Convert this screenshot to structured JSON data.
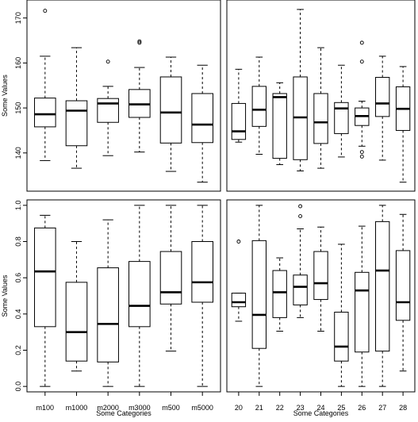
{
  "chart_data": [
    {
      "type": "boxplot",
      "panel": "top-left",
      "ylabel": "Some Values",
      "xlabel": "",
      "ylim": [
        131.5,
        174
      ],
      "yticks": [
        140,
        150,
        160,
        170
      ],
      "ytick_labels": [
        "140",
        "150",
        "160",
        "170"
      ],
      "categories": [
        "m100",
        "m1000",
        "m2000",
        "m3000",
        "m500",
        "m5000"
      ],
      "show_x_tick_labels": false,
      "boxes": [
        {
          "min": 138.3,
          "q1": 145.8,
          "median": 148.6,
          "q3": 152.2,
          "max": 161.5,
          "outliers": [
            171.6
          ]
        },
        {
          "min": 136.6,
          "q1": 141.6,
          "median": 149.4,
          "q3": 151.6,
          "max": 163.4,
          "outliers": []
        },
        {
          "min": 139.4,
          "q1": 146.8,
          "median": 151.0,
          "q3": 152.1,
          "max": 154.8,
          "outliers": [
            160.3
          ]
        },
        {
          "min": 140.2,
          "q1": 147.9,
          "median": 150.8,
          "q3": 154.1,
          "max": 159.0,
          "outliers": [
            164.5,
            164.8
          ]
        },
        {
          "min": 135.9,
          "q1": 142.2,
          "median": 149.0,
          "q3": 156.9,
          "max": 161.3,
          "outliers": []
        },
        {
          "min": 133.5,
          "q1": 142.3,
          "median": 146.3,
          "q3": 153.2,
          "max": 159.5,
          "outliers": []
        }
      ]
    },
    {
      "type": "boxplot",
      "panel": "top-right",
      "ylabel": "",
      "xlabel": "",
      "ylim": [
        131.5,
        174
      ],
      "categories": [
        "20",
        "21",
        "22",
        "23",
        "24",
        "25",
        "26",
        "27",
        "28"
      ],
      "show_x_tick_labels": false,
      "boxes": [
        {
          "min": 142.4,
          "q1": 143.0,
          "median": 144.8,
          "q3": 151.0,
          "max": 158.6,
          "outliers": []
        },
        {
          "min": 139.7,
          "q1": 145.9,
          "median": 149.6,
          "q3": 154.8,
          "max": 161.3,
          "outliers": []
        },
        {
          "min": 137.4,
          "q1": 138.8,
          "median": 152.4,
          "q3": 153.2,
          "max": 155.6,
          "outliers": []
        },
        {
          "min": 136.0,
          "q1": 138.5,
          "median": 147.9,
          "q3": 156.9,
          "max": 171.9,
          "outliers": []
        },
        {
          "min": 136.6,
          "q1": 142.1,
          "median": 146.8,
          "q3": 153.2,
          "max": 163.4,
          "outliers": []
        },
        {
          "min": 139.1,
          "q1": 144.3,
          "median": 149.9,
          "q3": 151.2,
          "max": 159.5,
          "outliers": []
        },
        {
          "min": 141.5,
          "q1": 146.1,
          "median": 148.2,
          "q3": 150.0,
          "max": 151.5,
          "outliers": [
            139.2,
            140.2,
            160.3,
            164.5
          ]
        },
        {
          "min": 138.4,
          "q1": 148.1,
          "median": 151.0,
          "q3": 156.8,
          "max": 161.5,
          "outliers": []
        },
        {
          "min": 133.5,
          "q1": 145.0,
          "median": 149.8,
          "q3": 154.7,
          "max": 159.2,
          "outliers": []
        }
      ]
    },
    {
      "type": "boxplot",
      "panel": "bottom-left",
      "ylabel": "Some Values",
      "xlabel": "Some Categories",
      "ylim": [
        -0.03,
        1.03
      ],
      "yticks": [
        0.0,
        0.2,
        0.4,
        0.6,
        0.8,
        1.0
      ],
      "ytick_labels": [
        "0.0",
        "0.2",
        "0.4",
        "0.6",
        "0.8",
        "1.0"
      ],
      "categories": [
        "m100",
        "m1000",
        "m2000",
        "m3000",
        "m500",
        "m5000"
      ],
      "show_x_tick_labels": true,
      "boxes": [
        {
          "min": 0.0,
          "q1": 0.33,
          "median": 0.635,
          "q3": 0.875,
          "max": 0.945,
          "outliers": []
        },
        {
          "min": 0.085,
          "q1": 0.14,
          "median": 0.3,
          "q3": 0.575,
          "max": 0.8,
          "outliers": []
        },
        {
          "min": 0.0,
          "q1": 0.135,
          "median": 0.345,
          "q3": 0.655,
          "max": 0.92,
          "outliers": []
        },
        {
          "min": 0.0,
          "q1": 0.33,
          "median": 0.445,
          "q3": 0.69,
          "max": 1.0,
          "outliers": []
        },
        {
          "min": 0.195,
          "q1": 0.455,
          "median": 0.52,
          "q3": 0.745,
          "max": 1.0,
          "outliers": []
        },
        {
          "min": 0.0,
          "q1": 0.465,
          "median": 0.575,
          "q3": 0.8,
          "max": 1.0,
          "outliers": []
        }
      ]
    },
    {
      "type": "boxplot",
      "panel": "bottom-right",
      "ylabel": "",
      "xlabel": "Some Categories",
      "ylim": [
        -0.03,
        1.03
      ],
      "categories": [
        "20",
        "21",
        "22",
        "23",
        "24",
        "25",
        "26",
        "27",
        "28"
      ],
      "show_x_tick_labels": true,
      "boxes": [
        {
          "min": 0.36,
          "q1": 0.44,
          "median": 0.465,
          "q3": 0.515,
          "max": 0.515,
          "outliers": [
            0.8
          ]
        },
        {
          "min": 0.0,
          "q1": 0.21,
          "median": 0.395,
          "q3": 0.805,
          "max": 1.0,
          "outliers": []
        },
        {
          "min": 0.305,
          "q1": 0.38,
          "median": 0.52,
          "q3": 0.64,
          "max": 0.71,
          "outliers": []
        },
        {
          "min": 0.38,
          "q1": 0.45,
          "median": 0.55,
          "q3": 0.615,
          "max": 0.87,
          "outliers": [
            0.94,
            0.995
          ]
        },
        {
          "min": 0.305,
          "q1": 0.48,
          "median": 0.57,
          "q3": 0.745,
          "max": 0.88,
          "outliers": []
        },
        {
          "min": 0.0,
          "q1": 0.14,
          "median": 0.22,
          "q3": 0.41,
          "max": 0.785,
          "outliers": []
        },
        {
          "min": 0.0,
          "q1": 0.19,
          "median": 0.53,
          "q3": 0.63,
          "max": 0.885,
          "outliers": []
        },
        {
          "min": 0.0,
          "q1": 0.195,
          "median": 0.64,
          "q3": 0.91,
          "max": 1.0,
          "outliers": []
        },
        {
          "min": 0.085,
          "q1": 0.365,
          "median": 0.465,
          "q3": 0.75,
          "max": 0.95,
          "outliers": []
        }
      ]
    }
  ]
}
